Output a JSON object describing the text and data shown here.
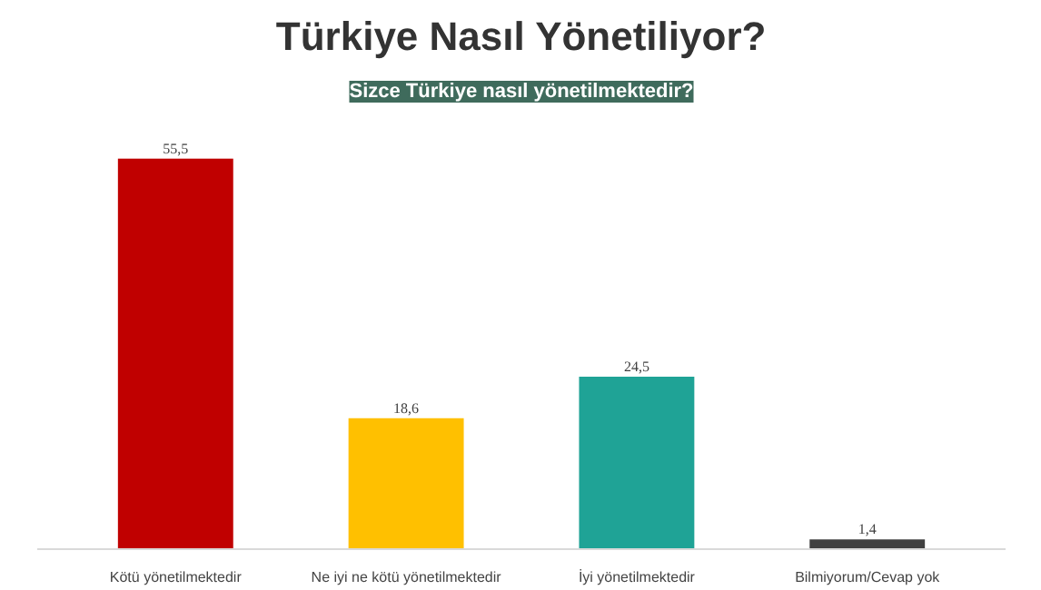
{
  "chart_data": {
    "type": "bar",
    "title": "Türkiye Nasıl Yönetiliyor?",
    "subtitle": "Sizce Türkiye nasıl yönetilmektedir?",
    "categories": [
      "Kötü yönetilmektedir",
      "Ne iyi ne kötü yönetilmektedir",
      "İyi yönetilmektedir",
      "Bilmiyorum/Cevap yok"
    ],
    "values": [
      55.5,
      18.6,
      24.5,
      1.4
    ],
    "colors": [
      "#c00000",
      "#ffc000",
      "#1fa396",
      "#404040"
    ],
    "value_labels": [
      "55,5",
      "18,6",
      "24,5",
      "1,4"
    ],
    "grid": false
  }
}
